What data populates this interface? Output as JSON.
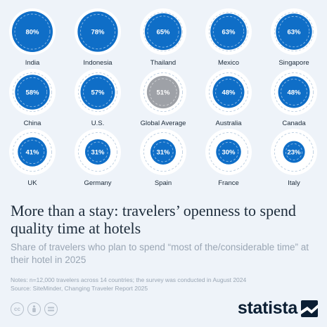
{
  "chart_data": {
    "type": "bubble",
    "unit": "%",
    "items": [
      {
        "label": "India",
        "value": 80,
        "display": "80%",
        "highlight": false
      },
      {
        "label": "Indonesia",
        "value": 78,
        "display": "78%",
        "highlight": false
      },
      {
        "label": "Thailand",
        "value": 65,
        "display": "65%",
        "highlight": false
      },
      {
        "label": "Mexico",
        "value": 63,
        "display": "63%",
        "highlight": false
      },
      {
        "label": "Singapore",
        "value": 63,
        "display": "63%",
        "highlight": false
      },
      {
        "label": "China",
        "value": 58,
        "display": "58%",
        "highlight": false
      },
      {
        "label": "U.S.",
        "value": 57,
        "display": "57%",
        "highlight": false
      },
      {
        "label": "Global Average",
        "value": 51,
        "display": "51%",
        "highlight": true
      },
      {
        "label": "Australia",
        "value": 48,
        "display": "48%",
        "highlight": false
      },
      {
        "label": "Canada",
        "value": 48,
        "display": "48%",
        "highlight": false
      },
      {
        "label": "UK",
        "value": 41,
        "display": "41%",
        "highlight": false
      },
      {
        "label": "Germany",
        "value": 31,
        "display": "31%",
        "highlight": false
      },
      {
        "label": "Spain",
        "value": 31,
        "display": "31%",
        "highlight": false
      },
      {
        "label": "France",
        "value": 30,
        "display": "30%",
        "highlight": false
      },
      {
        "label": "Italy",
        "value": 23,
        "display": "23%",
        "highlight": false
      }
    ],
    "colors": {
      "bubble": "#0f6ec7",
      "highlight": "#9ea1a7",
      "ring": "#ffffff",
      "dash": "#b9ccdf",
      "label": "#1c2b3a",
      "value_text": "#ffffff"
    }
  },
  "title": "More than a stay: travelers’ openness to spend quality time at hotels",
  "subtitle": "Share of travelers who plan to spend “most of the/considerable time” at their hotel in 2025",
  "notes": "Notes: n=12,000 travelers across 14 countries; the survey was conducted in August 2024",
  "source": "Source: SiteMinder, Changing Traveler Report 2025",
  "license_icons": [
    "cc-icon",
    "by-icon",
    "nd-icon"
  ],
  "brand": {
    "name": "statista"
  }
}
